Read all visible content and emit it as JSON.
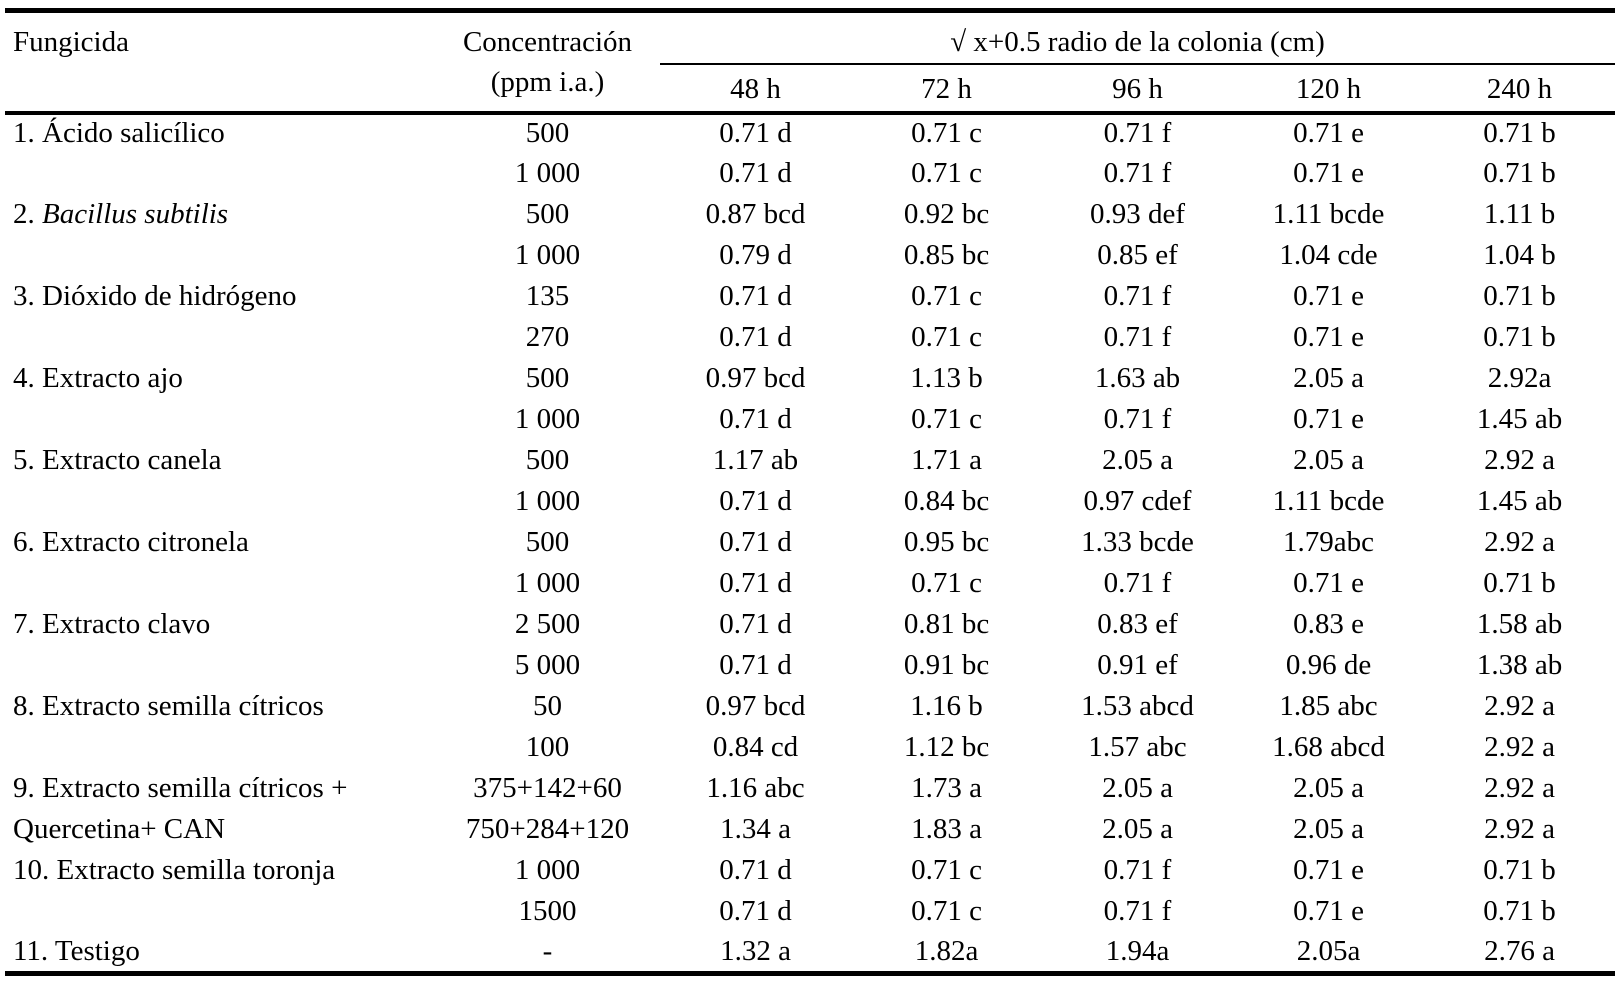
{
  "document": {
    "language": "es",
    "kind": "fungicide-colony-radius-table"
  },
  "table": {
    "header": {
      "fungicida": "Fungicida",
      "concentracion_line1": "Concentración",
      "concentracion_line2": "(ppm i.a.)",
      "span_header": "√ x+0.5 radio de la colonia (cm)",
      "time_headers": [
        "48 h",
        "72 h",
        "96 h",
        "120 h",
        "240 h"
      ]
    },
    "rows": [
      {
        "fungicida": "1. Ácido salicílico",
        "concentracion": "500",
        "values": [
          "0.71 d",
          "0.71 c",
          "0.71 f",
          "0.71 e",
          "0.71 b"
        ]
      },
      {
        "fungicida": "",
        "concentracion": "1 000",
        "values": [
          "0.71 d",
          "0.71 c",
          "0.71 f",
          "0.71 e",
          "0.71 b"
        ]
      },
      {
        "fungicida_prefix": "2. ",
        "fungicida_italic": "Bacillus subtilis",
        "concentracion": "500",
        "values": [
          "0.87 bcd",
          "0.92 bc",
          "0.93 def",
          "1.11 bcde",
          "1.11 b"
        ]
      },
      {
        "fungicida": "",
        "concentracion": "1 000",
        "values": [
          "0.79 d",
          "0.85 bc",
          "0.85 ef",
          "1.04 cde",
          "1.04 b"
        ]
      },
      {
        "fungicida": "3. Dióxido de hidrógeno",
        "concentracion": "135",
        "values": [
          "0.71 d",
          "0.71 c",
          "0.71 f",
          "0.71 e",
          "0.71 b"
        ]
      },
      {
        "fungicida": "",
        "concentracion": "270",
        "values": [
          "0.71 d",
          "0.71 c",
          "0.71 f",
          "0.71 e",
          "0.71 b"
        ]
      },
      {
        "fungicida": "4. Extracto ajo",
        "concentracion": "500",
        "values": [
          "0.97 bcd",
          "1.13 b",
          "1.63 ab",
          "2.05 a",
          "2.92a"
        ]
      },
      {
        "fungicida": "",
        "concentracion": "1 000",
        "values": [
          "0.71 d",
          "0.71 c",
          "0.71 f",
          "0.71 e",
          "1.45 ab"
        ]
      },
      {
        "fungicida": "5. Extracto canela",
        "concentracion": "500",
        "values": [
          "1.17 ab",
          "1.71 a",
          "2.05 a",
          "2.05 a",
          "2.92 a"
        ]
      },
      {
        "fungicida": "",
        "concentracion": "1 000",
        "values": [
          "0.71 d",
          "0.84 bc",
          "0.97 cdef",
          "1.11 bcde",
          "1.45 ab"
        ]
      },
      {
        "fungicida": "6. Extracto citronela",
        "concentracion": "500",
        "values": [
          "0.71 d",
          "0.95 bc",
          "1.33 bcde",
          "1.79abc",
          "2.92 a"
        ]
      },
      {
        "fungicida": "",
        "concentracion": "1 000",
        "values": [
          "0.71 d",
          "0.71 c",
          "0.71 f",
          "0.71 e",
          "0.71 b"
        ]
      },
      {
        "fungicida": "7. Extracto clavo",
        "concentracion": "2 500",
        "values": [
          "0.71 d",
          "0.81 bc",
          "0.83 ef",
          "0.83 e",
          "1.58 ab"
        ]
      },
      {
        "fungicida": "",
        "concentracion": "5 000",
        "values": [
          "0.71 d",
          "0.91 bc",
          "0.91 ef",
          "0.96 de",
          "1.38 ab"
        ]
      },
      {
        "fungicida": "8. Extracto semilla cítricos",
        "concentracion": "50",
        "values": [
          "0.97 bcd",
          "1.16 b",
          "1.53 abcd",
          "1.85 abc",
          "2.92 a"
        ]
      },
      {
        "fungicida": "",
        "concentracion": "100",
        "values": [
          "0.84 cd",
          "1.12 bc",
          "1.57 abc",
          "1.68 abcd",
          "2.92 a"
        ]
      },
      {
        "fungicida": "9. Extracto semilla cítricos +",
        "concentracion": "375+142+60",
        "values": [
          "1.16 abc",
          "1.73 a",
          "2.05 a",
          "2.05 a",
          "2.92 a"
        ]
      },
      {
        "fungicida": "Quercetina+ CAN",
        "concentracion": "750+284+120",
        "values": [
          "1.34 a",
          "1.83 a",
          "2.05 a",
          "2.05 a",
          "2.92 a"
        ]
      },
      {
        "fungicida": "10. Extracto semilla toronja",
        "concentracion": "1 000",
        "values": [
          "0.71 d",
          "0.71 c",
          "0.71 f",
          "0.71 e",
          "0.71 b"
        ]
      },
      {
        "fungicida": "",
        "concentracion": "1500",
        "values": [
          "0.71 d",
          "0.71 c",
          "0.71 f",
          "0.71 e",
          "0.71 b"
        ]
      },
      {
        "fungicida": "11. Testigo",
        "concentracion": "-",
        "values": [
          "1.32 a",
          "1.82a",
          "1.94a",
          "2.05a",
          "2.76 a"
        ]
      }
    ]
  },
  "colors": {
    "text": "#000000",
    "background": "#ffffff",
    "rule": "#000000"
  }
}
